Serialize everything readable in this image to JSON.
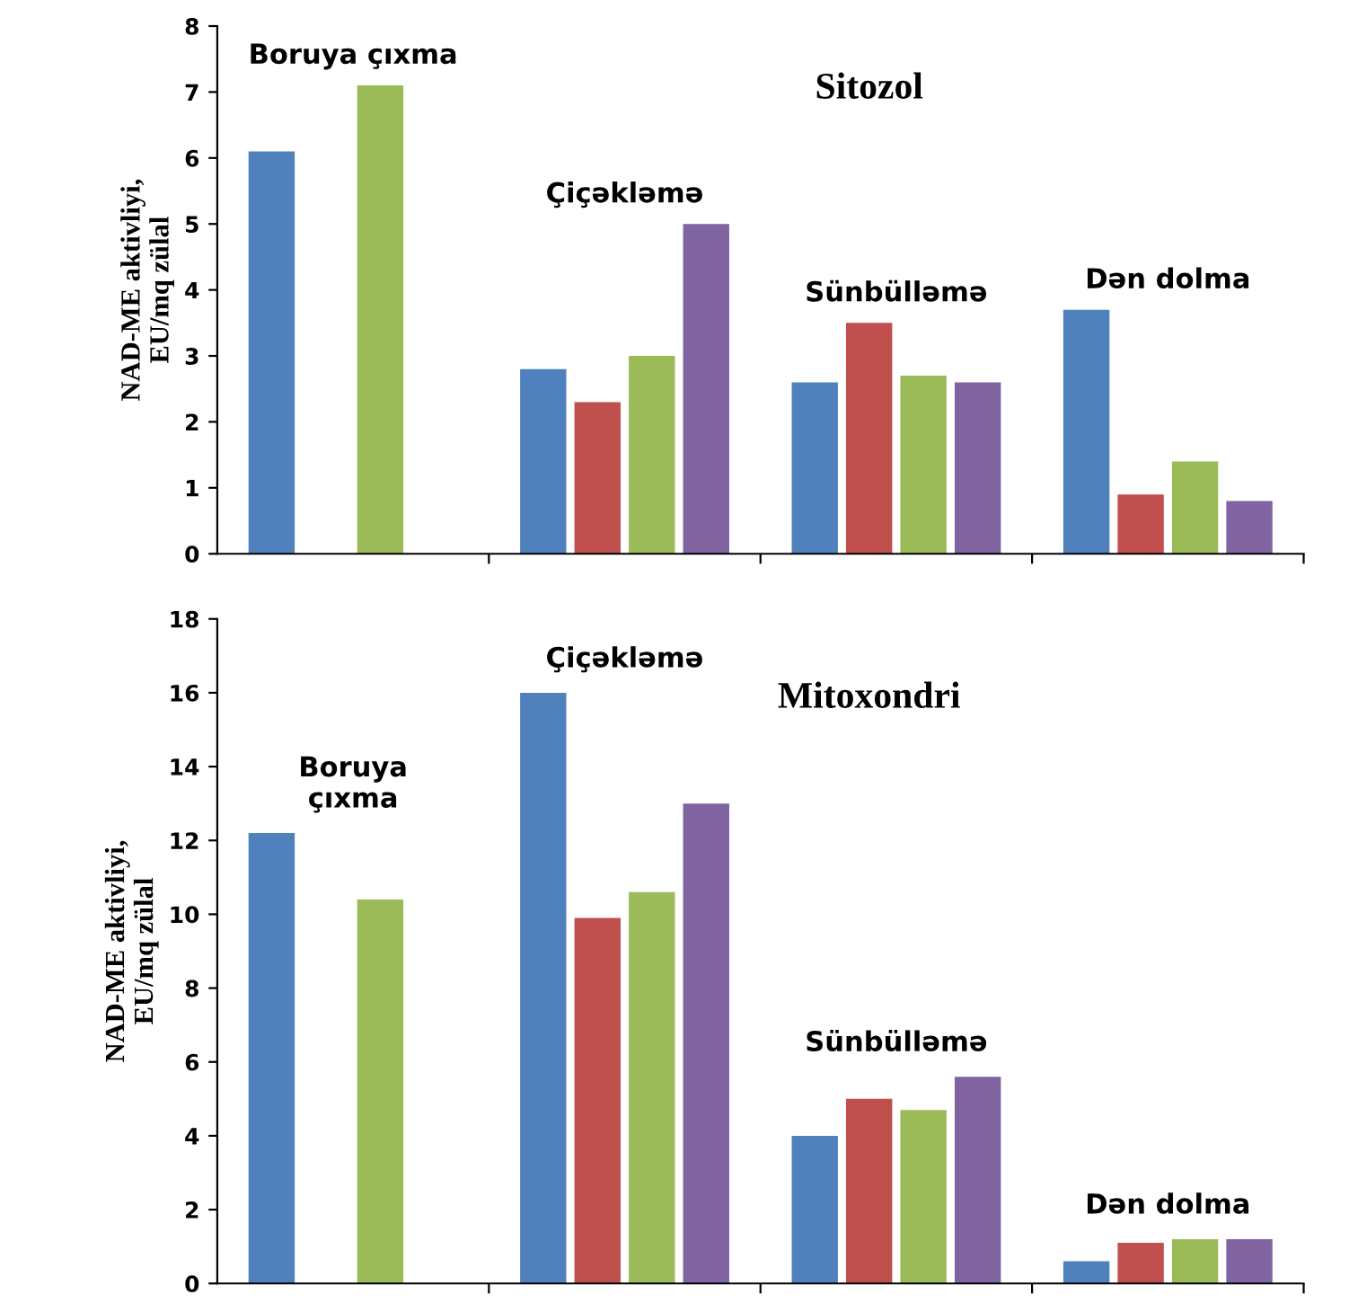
{
  "chart_data": [
    {
      "type": "bar",
      "title": "Sitozol",
      "ylabel": "NAD-ME aktivliyi,\nEU/mq zülal",
      "categories": [
        "Boruya çıxma",
        "Çiçəkləmə",
        "Sünbülləmə",
        "Dən dolma"
      ],
      "ylim": [
        0,
        8
      ],
      "yticks": [
        0,
        1,
        2,
        3,
        4,
        5,
        6,
        7,
        8
      ],
      "tick_labels": "y",
      "grid": false,
      "legend": false,
      "series": [
        {
          "color": "#4f81bd",
          "values": [
            6.1,
            2.8,
            2.6,
            3.7
          ]
        },
        {
          "color": "#c0504d",
          "values": [
            null,
            2.3,
            3.5,
            0.9
          ]
        },
        {
          "color": "#9bbb59",
          "values": [
            7.1,
            3.0,
            2.7,
            1.4
          ]
        },
        {
          "color": "#8064a2",
          "values": [
            null,
            5.0,
            2.6,
            0.8
          ]
        }
      ]
    },
    {
      "type": "bar",
      "title": "Mitoxondri",
      "ylabel": "NAD-ME aktivliyi,\nEU/mq zülal",
      "categories": [
        "Boruya\nçıxma",
        "Çiçəkləmə",
        "Sünbülləmə",
        "Dən dolma"
      ],
      "ylim": [
        0,
        18
      ],
      "yticks": [
        0,
        2,
        4,
        6,
        8,
        10,
        12,
        14,
        16,
        18
      ],
      "tick_labels": "y",
      "grid": false,
      "legend": false,
      "series": [
        {
          "color": "#4f81bd",
          "values": [
            12.2,
            16.0,
            4.0,
            0.6
          ]
        },
        {
          "color": "#c0504d",
          "values": [
            null,
            9.9,
            5.0,
            1.1
          ]
        },
        {
          "color": "#9bbb59",
          "values": [
            10.4,
            10.6,
            4.7,
            1.2
          ]
        },
        {
          "color": "#8064a2",
          "values": [
            null,
            13.0,
            5.6,
            1.2
          ]
        }
      ]
    }
  ]
}
